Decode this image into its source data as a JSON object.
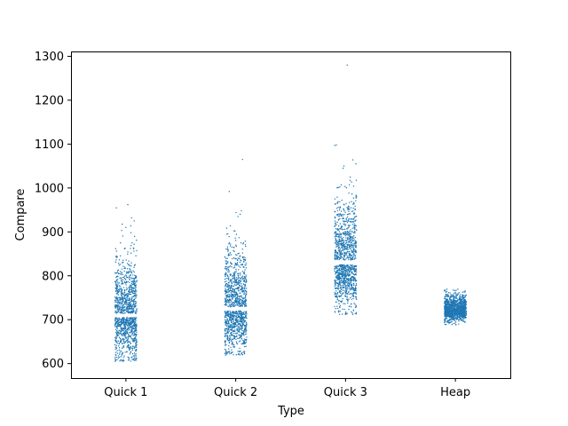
{
  "chart_data": {
    "type": "scatter",
    "style": "strip plot (jittered)",
    "title": "",
    "xlabel": "Type",
    "ylabel": "Compare",
    "categories": [
      "Quick 1",
      "Quick 2",
      "Quick 3",
      "Heap"
    ],
    "ylim": [
      567,
      1311
    ],
    "y_ticks": [
      600,
      700,
      800,
      900,
      1000,
      1100,
      1200,
      1300
    ],
    "grid": false,
    "legend": "none",
    "marker_color": "#1f77b4",
    "series": [
      {
        "category": "Quick 1",
        "points_per_category": 1200,
        "core_range": [
          640,
          860
        ],
        "center": 705,
        "min": 605,
        "max": 962,
        "outliers": [
          932,
          925,
          962,
          910,
          898
        ]
      },
      {
        "category": "Quick 2",
        "points_per_category": 1200,
        "core_range": [
          650,
          880
        ],
        "center": 720,
        "min": 618,
        "max": 1065,
        "outliers": [
          1065,
          992,
          948,
          940,
          935
        ]
      },
      {
        "category": "Quick 3",
        "points_per_category": 1200,
        "core_range": [
          760,
          1000
        ],
        "center": 825,
        "min": 710,
        "max": 1280,
        "outliers": [
          1280,
          1098,
          1055,
          1050,
          1045
        ]
      },
      {
        "category": "Heap",
        "points_per_category": 1200,
        "core_range": [
          695,
          755
        ],
        "center": 722,
        "min": 675,
        "max": 770,
        "outliers": []
      }
    ]
  }
}
